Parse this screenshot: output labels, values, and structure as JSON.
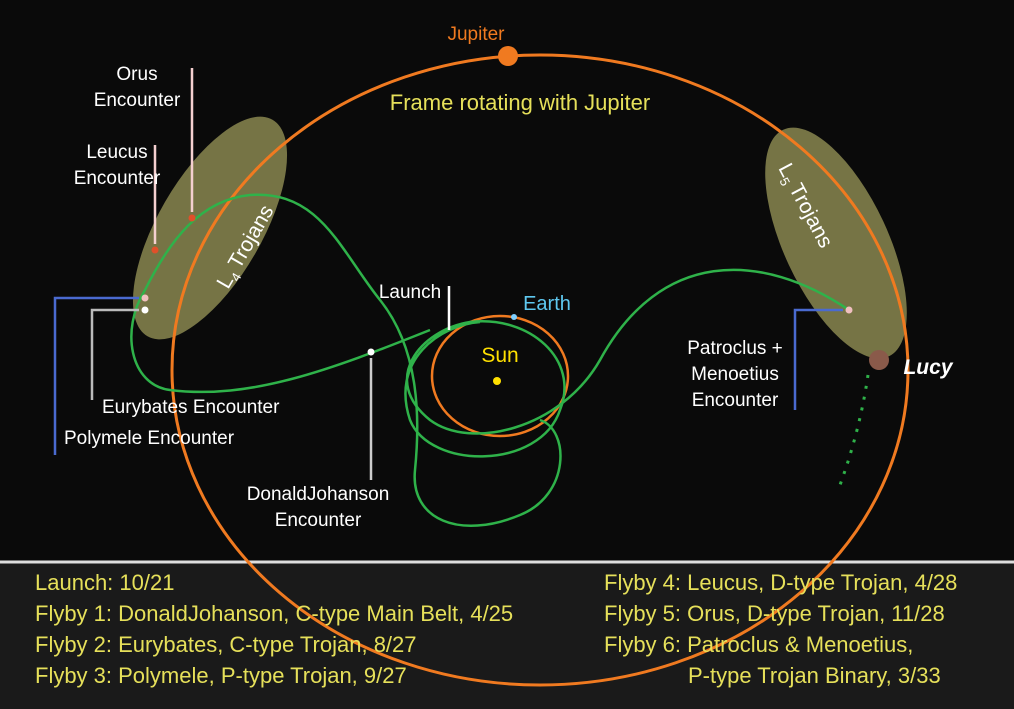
{
  "title": "Frame rotating with Jupiter",
  "bodies": {
    "jupiter": "Jupiter",
    "earth": "Earth",
    "sun": "Sun",
    "lucy": "Lucy"
  },
  "regions": {
    "l4": {
      "letter": "L",
      "sub": "4",
      "name": "Trojans"
    },
    "l5": {
      "letter": "L",
      "sub": "5",
      "name": "Trojans"
    }
  },
  "labels": {
    "orus": [
      "Orus",
      "Encounter"
    ],
    "leucus": [
      "Leucus",
      "Encounter"
    ],
    "launch": [
      "Launch"
    ],
    "eurybates": [
      "Eurybates Encounter"
    ],
    "polymele": [
      "Polymele Encounter"
    ],
    "donaldjohanson": [
      "DonaldJohanson",
      "Encounter"
    ],
    "patroclus": [
      "Patroclus +",
      "Menoetius",
      "Encounter"
    ]
  },
  "timeline": {
    "left": [
      "Launch: 10/21",
      "Flyby 1: DonaldJohanson, C-type  Main Belt, 4/25",
      "Flyby 2: Eurybates, C-type Trojan, 8/27",
      "Flyby 3: Polymele, P-type Trojan, 9/27"
    ],
    "right": [
      "Flyby 4: Leucus, D-type Trojan, 4/28",
      "Flyby 5: Orus, D-type Trojan, 11/28",
      "Flyby 6: Patroclus & Menoetius,",
      "P-type Trojan Binary, 3/33"
    ]
  }
}
